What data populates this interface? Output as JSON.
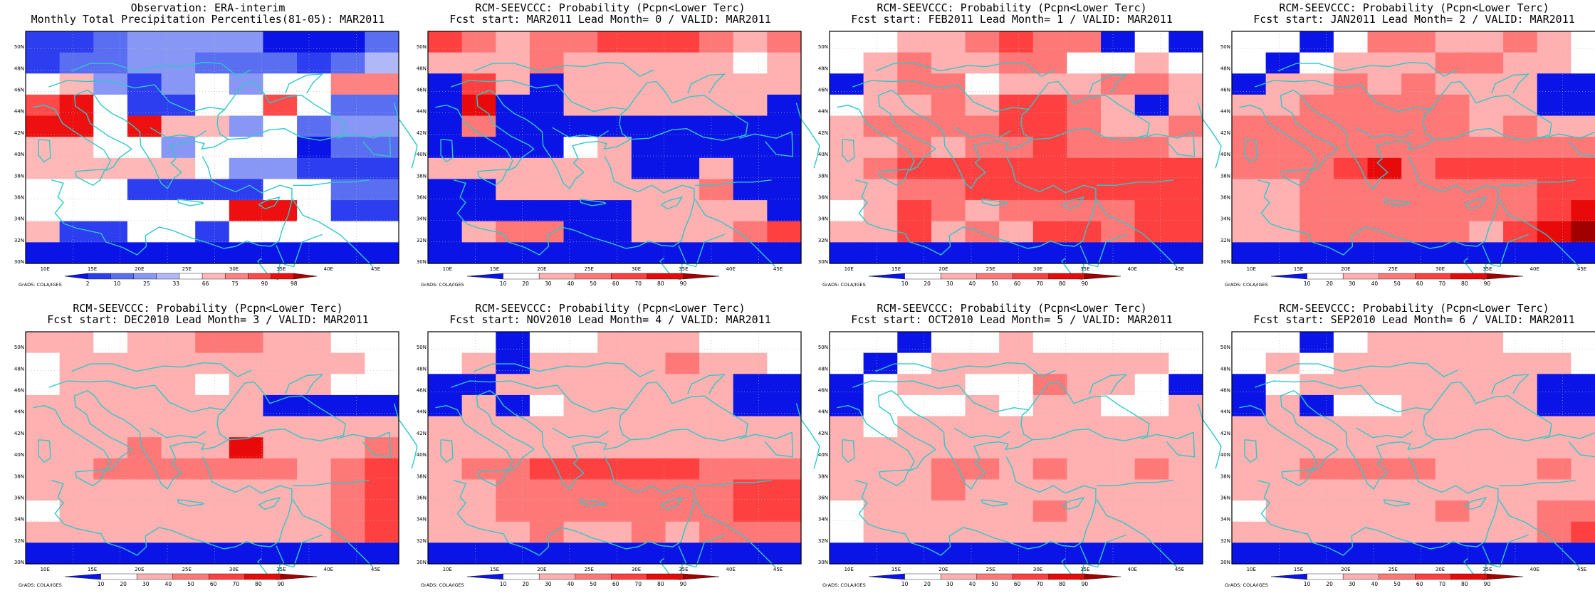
{
  "credit": "GrADS: COLA/IGES",
  "x_axis_labels": [
    "10E",
    "15E",
    "20E",
    "25E",
    "30E",
    "35E",
    "40E",
    "45E"
  ],
  "y_axis_labels": [
    "30N",
    "32N",
    "34N",
    "36N",
    "38N",
    "40N",
    "42N",
    "44N",
    "46N",
    "48N",
    "50N"
  ],
  "colors": {
    "coast": "#2ec9c9",
    "frame": "#000000",
    "grid": "#b8b8b8",
    "obs_scale": [
      "#0a14e6",
      "#2c3ef0",
      "#5a6ef2",
      "#8896f5",
      "#b0b8f8",
      "#ffffff",
      "#ffb8b8",
      "#ff8282",
      "#ff4a4a",
      "#ee1010",
      "#ab0000"
    ],
    "prob_scale": [
      "#0a14e6",
      "#ffffff",
      "#ffb0b0",
      "#ff7878",
      "#ff4040",
      "#e80a0a",
      "#a00000"
    ]
  },
  "panels": [
    {
      "title1": "Observation: ERA-interim",
      "title2": "Monthly Total Precipitation Percentiles(81-05): MAR2011",
      "scale": "obs_scale",
      "colorbar_labels": [
        "2",
        "10",
        "25",
        "33",
        "66",
        "75",
        "90",
        "98"
      ],
      "grid": [
        "11233330002",
        "12233222124",
        "56313535577",
        "89511558522",
        "99596635233",
        "66553555022",
        "66666533111",
        "55511115522",
        "55555599511",
        "61155155555",
        "00000000000"
      ]
    },
    {
      "title1": "RCM-SEEVCCC: Probability (Pcpn<Lower Terc)",
      "title2": "Fcst start: MAR2011   Lead Month= 0 / VALID: MAR2011",
      "scale": "prob_scale",
      "colorbar_labels": [
        "10",
        "20",
        "30",
        "40",
        "50",
        "60",
        "70",
        "80",
        "90"
      ],
      "grid": [
        "43233444323",
        "22232222212",
        "04202222222",
        "05002222220",
        "03000000000",
        "00001200000",
        "22222200200",
        "00222222300",
        "00000022220",
        "02330022234",
        "00000000000"
      ]
    },
    {
      "title1": "RCM-SEEVCCC: Probability (Pcpn<Lower Terc)",
      "title2": "Fcst start: FEB2011   Lead Month= 1 / VALID: MAR2011",
      "scale": "prob_scale",
      "colorbar_labels": [
        "10",
        "20",
        "30",
        "40",
        "50",
        "60",
        "70",
        "80",
        "90"
      ],
      "grid": [
        "11223433010",
        "12322331121",
        "02331222332",
        "12232443202",
        "23333443223",
        "22323343332",
        "23444444444",
        "22334444444",
        "12432333344",
        "22423244344",
        "00000000000"
      ]
    },
    {
      "title1": "RCM-SEEVCCC: Probability (Pcpn<Lower Terc)",
      "title2": "Fcst start: JAN2011   Lead Month= 2 / VALID: MAR2011",
      "scale": "prob_scale",
      "colorbar_labels": [
        "10",
        "20",
        "30",
        "40",
        "50",
        "60",
        "70",
        "80",
        "90"
      ],
      "grid": [
        "11013322321",
        "10122233221",
        "02232322200",
        "22333332200",
        "33333332322",
        "33333333333",
        "33345344444",
        "22333333344",
        "22333333345",
        "22333332456",
        "00000000000"
      ]
    },
    {
      "title1": "RCM-SEEVCCC: Probability (Pcpn<Lower Terc)",
      "title2": "Fcst start: DEC2010   Lead Month= 3 / VALID: MAR2011",
      "scale": "prob_scale",
      "colorbar_labels": [
        "10",
        "20",
        "30",
        "40",
        "50",
        "60",
        "70",
        "80",
        "90"
      ],
      "grid": [
        "22122332211",
        "12222222221",
        "12222122211",
        "22222220000",
        "22222222222",
        "22232252223",
        "22333333234",
        "22222222234",
        "12222222234",
        "22222222234",
        "00000000000"
      ]
    },
    {
      "title1": "RCM-SEEVCCC: Probability (Pcpn<Lower Terc)",
      "title2": "Fcst start: NOV2010   Lead Month= 4 / VALID: MAR2011",
      "scale": "prob_scale",
      "colorbar_labels": [
        "10",
        "20",
        "30",
        "40",
        "50",
        "60",
        "70",
        "80",
        "90"
      ],
      "grid": [
        "11011222111",
        "12022223221",
        "00222222200",
        "02012222200",
        "22222222222",
        "22222222222",
        "23344444333",
        "22333333344",
        "22333333344",
        "22232232333",
        "00000000000"
      ]
    },
    {
      "title1": "RCM-SEEVCCC: Probability (Pcpn<Lower Terc)",
      "title2": "Fcst start: OCT2010   Lead Month= 5 / VALID: MAR2011",
      "scale": "prob_scale",
      "colorbar_labels": [
        "10",
        "20",
        "30",
        "40",
        "50",
        "60",
        "70",
        "80",
        "90"
      ],
      "grid": [
        "11011211111",
        "10122222221",
        "01221132210",
        "01112122112",
        "21222222222",
        "22222222222",
        "22233232232",
        "22232222222",
        "12222232222",
        "12222222222",
        "00000000000"
      ]
    },
    {
      "title1": "RCM-SEEVCCC: Probability (Pcpn<Lower Terc)",
      "title2": "Fcst start: SEP2010   Lead Month= 6 / VALID: MAR2011",
      "scale": "prob_scale",
      "colorbar_labels": [
        "10",
        "20",
        "30",
        "40",
        "50",
        "60",
        "70",
        "80",
        "90"
      ],
      "grid": [
        "11012222111",
        "12122222221",
        "01222222200",
        "02011222200",
        "22222222222",
        "22222222222",
        "22333322232",
        "22222222222",
        "12222232233",
        "22222222234",
        "00000000000"
      ]
    }
  ]
}
